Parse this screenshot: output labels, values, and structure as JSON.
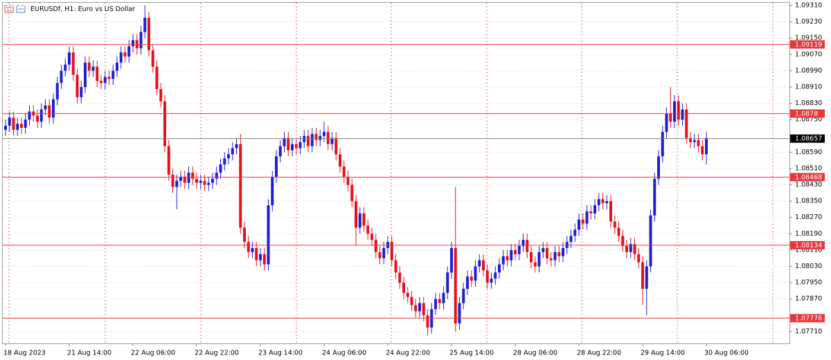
{
  "chart_data": {
    "type": "candlestick",
    "title": "EURUSDf, H1:  Euro vs US Dollar",
    "up_color": "#1f1fd0",
    "down_color": "#e3121c",
    "level_color": "#e8373c",
    "current_price_color": "#000000",
    "ylim": [
      1.07652,
      1.09327
    ],
    "yticks": [
      {
        "value": 1.0931,
        "label": "1.09310"
      },
      {
        "value": 1.0923,
        "label": "1.09230"
      },
      {
        "value": 1.0915,
        "label": "1.09150"
      },
      {
        "value": 1.0907,
        "label": "1.09070"
      },
      {
        "value": 1.0899,
        "label": "1.08990"
      },
      {
        "value": 1.0891,
        "label": "1.08910"
      },
      {
        "value": 1.0883,
        "label": "1.08830"
      },
      {
        "value": 1.0875,
        "label": "1.08750"
      },
      {
        "value": 1.0859,
        "label": "1.08590"
      },
      {
        "value": 1.0851,
        "label": "1.08510"
      },
      {
        "value": 1.0843,
        "label": "1.08430"
      },
      {
        "value": 1.0835,
        "label": "1.08350"
      },
      {
        "value": 1.0827,
        "label": "1.08270"
      },
      {
        "value": 1.0819,
        "label": "1.08190"
      },
      {
        "value": 1.0811,
        "label": "1.08110"
      },
      {
        "value": 1.0803,
        "label": "1.08030"
      },
      {
        "value": 1.0795,
        "label": "1.07950"
      },
      {
        "value": 1.0787,
        "label": "1.07870"
      },
      {
        "value": 1.0771,
        "label": "1.07710"
      }
    ],
    "grid": true,
    "levels": [
      1.09119,
      1.0878,
      1.08468,
      1.08134,
      1.07776
    ],
    "current_price": 1.08657,
    "categories": [
      "18 Aug 2023",
      null,
      null,
      null,
      null,
      null,
      null,
      null,
      null,
      null,
      null,
      null,
      null,
      null,
      null,
      null,
      "21 Aug 14:00",
      null,
      null,
      null,
      null,
      null,
      null,
      null,
      null,
      null,
      null,
      null,
      null,
      null,
      null,
      null,
      "22 Aug 06:00",
      null,
      null,
      null,
      null,
      null,
      null,
      null,
      null,
      null,
      null,
      null,
      null,
      null,
      null,
      null,
      "22 Aug 22:00",
      null,
      null,
      null,
      null,
      null,
      null,
      null,
      null,
      null,
      null,
      null,
      null,
      null,
      null,
      null,
      "23 Aug 14:00",
      null,
      null,
      null,
      null,
      null,
      null,
      null,
      null,
      null,
      null,
      null,
      null,
      null,
      null,
      null,
      "24 Aug 06:00",
      null,
      null,
      null,
      null,
      null,
      null,
      null,
      null,
      null,
      null,
      null,
      null,
      null,
      null,
      null,
      "24 Aug 22:00",
      null,
      null,
      null,
      null,
      null,
      null,
      null,
      null,
      null,
      null,
      null,
      null,
      null,
      null,
      null,
      "25 Aug 14:00",
      null,
      null,
      null,
      null,
      null,
      null,
      null,
      null,
      null,
      null,
      null,
      null,
      null,
      null,
      null,
      "28 Aug 06:00",
      null,
      null,
      null,
      null,
      null,
      null,
      null,
      null,
      null,
      null,
      null,
      null,
      null,
      null,
      null,
      "28 Aug 22:00",
      null,
      null,
      null,
      null,
      null,
      null,
      null,
      null,
      null,
      null,
      null,
      null,
      null,
      null,
      null,
      "29 Aug 14:00",
      null,
      null,
      null,
      null,
      null,
      null,
      null,
      null,
      null,
      null,
      null,
      null,
      null,
      null,
      null,
      "30 Aug 06:00"
    ],
    "open": [
      1.087,
      1.0872,
      1.0876,
      1.087,
      1.0873,
      1.0871,
      1.0875,
      1.0879,
      1.0877,
      1.0874,
      1.088,
      1.0882,
      1.0876,
      1.0885,
      1.0893,
      1.0899,
      1.0902,
      1.0908,
      1.0897,
      1.0886,
      1.0891,
      1.0903,
      1.0899,
      1.0901,
      1.0894,
      1.0893,
      1.0896,
      1.0895,
      1.0899,
      1.0903,
      1.0908,
      1.0906,
      1.0911,
      1.0914,
      1.091,
      1.0918,
      1.0925,
      1.0909,
      1.0901,
      1.089,
      1.0884,
      1.0862,
      1.0848,
      1.0842,
      1.0845,
      1.0847,
      1.0844,
      1.0849,
      1.0846,
      1.0844,
      1.0845,
      1.0843,
      1.0844,
      1.0846,
      1.0849,
      1.0853,
      1.0856,
      1.0858,
      1.0861,
      1.0863,
      1.0822,
      1.0815,
      1.081,
      1.0812,
      1.0806,
      1.0809,
      1.0804,
      1.0833,
      1.0847,
      1.0857,
      1.0862,
      1.0866,
      1.086,
      1.0863,
      1.0861,
      1.0864,
      1.0867,
      1.0862,
      1.0868,
      1.0865,
      1.0867,
      1.0869,
      1.0863,
      1.0866,
      1.0858,
      1.0852,
      1.0847,
      1.0843,
      1.0835,
      1.0822,
      1.0829,
      1.0823,
      1.0819,
      1.0816,
      1.081,
      1.0807,
      1.0812,
      1.0815,
      1.0806,
      1.08,
      1.0795,
      1.079,
      1.0788,
      1.0784,
      1.0781,
      1.0785,
      1.0779,
      1.0773,
      1.0782,
      1.0787,
      1.0785,
      1.079,
      1.08,
      1.0812,
      1.0775,
      1.0785,
      1.0792,
      1.0798,
      1.0796,
      1.0803,
      1.0806,
      1.0801,
      1.0795,
      1.0797,
      1.08,
      1.0804,
      1.0808,
      1.0806,
      1.0811,
      1.0809,
      1.0813,
      1.0816,
      1.081,
      1.0805,
      1.0803,
      1.081,
      1.0812,
      1.0807,
      1.0806,
      1.081,
      1.0808,
      1.0812,
      1.0815,
      1.0818,
      1.0821,
      1.0826,
      1.0824,
      1.083,
      1.0829,
      1.0833,
      1.0836,
      1.0834,
      1.0835,
      1.0825,
      1.0822,
      1.0818,
      1.0813,
      1.081,
      1.0814,
      1.0809,
      1.0805,
      1.0792,
      1.0803,
      1.0828,
      1.0846,
      1.0857,
      1.0869,
      1.0878,
      1.0874,
      1.0884,
      1.0875,
      1.088,
      1.0866,
      1.0864,
      1.0865,
      1.0862,
      1.0858
    ],
    "high": [
      1.0875,
      1.0879,
      1.0879,
      1.0876,
      1.0876,
      1.0878,
      1.0882,
      1.0882,
      1.088,
      1.0883,
      1.0885,
      1.0885,
      1.0888,
      1.0896,
      1.0902,
      1.0905,
      1.0911,
      1.0911,
      1.09,
      1.0894,
      1.0906,
      1.0906,
      1.0904,
      1.0904,
      1.0897,
      1.0899,
      1.0899,
      1.0902,
      1.0906,
      1.0911,
      1.0911,
      1.0914,
      1.0917,
      1.0917,
      1.0921,
      1.0931,
      1.0928,
      1.0912,
      1.0904,
      1.0893,
      1.0887,
      1.0865,
      1.0851,
      1.0848,
      1.085,
      1.085,
      1.0852,
      1.0852,
      1.0849,
      1.0848,
      1.0848,
      1.0847,
      1.0849,
      1.0852,
      1.0856,
      1.0859,
      1.0861,
      1.0864,
      1.0866,
      1.0868,
      1.0825,
      1.0818,
      1.0815,
      1.0815,
      1.0812,
      1.0812,
      1.0836,
      1.085,
      1.086,
      1.0865,
      1.0869,
      1.0869,
      1.0866,
      1.0866,
      1.0867,
      1.087,
      1.087,
      1.0871,
      1.0871,
      1.087,
      1.0874,
      1.0872,
      1.0869,
      1.0869,
      1.0861,
      1.0855,
      1.085,
      1.0846,
      1.0838,
      1.0832,
      1.0832,
      1.0826,
      1.0822,
      1.0819,
      1.0813,
      1.0815,
      1.0818,
      1.0818,
      1.0809,
      1.0803,
      1.0798,
      1.0793,
      1.0791,
      1.0787,
      1.0788,
      1.0788,
      1.0782,
      1.0785,
      1.079,
      1.079,
      1.0793,
      1.0803,
      1.0815,
      1.0842,
      1.0788,
      1.0795,
      1.0801,
      1.0801,
      1.0806,
      1.0809,
      1.0809,
      1.0804,
      1.08,
      1.0803,
      1.0807,
      1.0811,
      1.0811,
      1.0814,
      1.0814,
      1.0816,
      1.0819,
      1.0819,
      1.0813,
      1.0808,
      1.0813,
      1.0815,
      1.0815,
      1.081,
      1.0813,
      1.0813,
      1.0815,
      1.0818,
      1.0821,
      1.0824,
      1.0829,
      1.0829,
      1.0833,
      1.0833,
      1.0836,
      1.0839,
      1.0839,
      1.0838,
      1.0838,
      1.0828,
      1.0825,
      1.0821,
      1.0816,
      1.0817,
      1.0817,
      1.0812,
      1.0808,
      1.0806,
      1.0831,
      1.0849,
      1.086,
      1.0872,
      1.0881,
      1.0891,
      1.0887,
      1.0887,
      1.0883,
      1.0883,
      1.0869,
      1.0868,
      1.0868,
      1.0865,
      1.0869
    ],
    "low": [
      1.0867,
      1.0869,
      1.0867,
      1.0867,
      1.0868,
      1.0868,
      1.0872,
      1.0874,
      1.0871,
      1.0871,
      1.0877,
      1.0873,
      1.0873,
      1.0882,
      1.089,
      1.0896,
      1.0899,
      1.0894,
      1.0883,
      1.0883,
      1.0888,
      1.0896,
      1.0896,
      1.0891,
      1.089,
      1.089,
      1.0892,
      1.0892,
      1.0896,
      1.09,
      1.0903,
      1.0903,
      1.0908,
      1.0907,
      1.0907,
      1.0915,
      1.0906,
      1.0898,
      1.0887,
      1.0881,
      1.0859,
      1.0845,
      1.0839,
      1.0831,
      1.0842,
      1.0841,
      1.0841,
      1.0843,
      1.0841,
      1.0841,
      1.084,
      1.084,
      1.0841,
      1.0843,
      1.0846,
      1.085,
      1.0853,
      1.0855,
      1.0858,
      1.0819,
      1.0812,
      1.0807,
      1.0807,
      1.0803,
      1.0803,
      1.0801,
      1.0801,
      1.083,
      1.0844,
      1.0854,
      1.0859,
      1.0857,
      1.0857,
      1.0858,
      1.0858,
      1.0861,
      1.0859,
      1.0859,
      1.0862,
      1.0862,
      1.0864,
      1.086,
      1.086,
      1.0855,
      1.0849,
      1.0844,
      1.084,
      1.0832,
      1.0813,
      1.0819,
      1.082,
      1.0816,
      1.0813,
      1.0807,
      1.0804,
      1.0804,
      1.0809,
      1.0803,
      1.0797,
      1.0792,
      1.0787,
      1.0785,
      1.0781,
      1.0778,
      1.0778,
      1.0776,
      1.0769,
      1.077,
      1.0779,
      1.0782,
      1.0782,
      1.0787,
      1.0797,
      1.0771,
      1.0772,
      1.0782,
      1.0789,
      1.0793,
      1.0793,
      1.08,
      1.0798,
      1.0792,
      1.0792,
      1.0794,
      1.0797,
      1.0801,
      1.0803,
      1.0803,
      1.0806,
      1.0806,
      1.081,
      1.0807,
      1.0802,
      1.08,
      1.08,
      1.0807,
      1.0804,
      1.0803,
      1.0803,
      1.0805,
      1.0805,
      1.0809,
      1.0812,
      1.0815,
      1.0818,
      1.0821,
      1.0821,
      1.0826,
      1.0826,
      1.083,
      1.0831,
      1.0831,
      1.0822,
      1.0819,
      1.0815,
      1.081,
      1.0807,
      1.0807,
      1.0806,
      1.0802,
      1.0784,
      1.0779,
      1.08,
      1.0825,
      1.0843,
      1.0854,
      1.0866,
      1.0871,
      1.0871,
      1.0872,
      1.0872,
      1.0863,
      1.0861,
      1.0861,
      1.0859,
      1.0855,
      1.0853
    ],
    "close": [
      1.0872,
      1.0876,
      1.087,
      1.0873,
      1.0871,
      1.0875,
      1.0879,
      1.0877,
      1.0874,
      1.088,
      1.0882,
      1.0876,
      1.0885,
      1.0893,
      1.0899,
      1.0902,
      1.0908,
      1.0897,
      1.0886,
      1.0891,
      1.0903,
      1.0899,
      1.0901,
      1.0894,
      1.0893,
      1.0896,
      1.0895,
      1.0899,
      1.0903,
      1.0908,
      1.0906,
      1.0911,
      1.0914,
      1.091,
      1.0918,
      1.0925,
      1.0909,
      1.0901,
      1.089,
      1.0884,
      1.0862,
      1.0848,
      1.0842,
      1.0845,
      1.0847,
      1.0844,
      1.0849,
      1.0846,
      1.0844,
      1.0845,
      1.0843,
      1.0844,
      1.0846,
      1.0849,
      1.0853,
      1.0856,
      1.0858,
      1.0861,
      1.0863,
      1.0822,
      1.0815,
      1.081,
      1.0812,
      1.0806,
      1.0809,
      1.0804,
      1.0833,
      1.0847,
      1.0857,
      1.0862,
      1.0866,
      1.086,
      1.0863,
      1.0861,
      1.0864,
      1.0867,
      1.0862,
      1.0868,
      1.0865,
      1.0867,
      1.0869,
      1.0863,
      1.0866,
      1.0858,
      1.0852,
      1.0847,
      1.0843,
      1.0835,
      1.0822,
      1.0829,
      1.0823,
      1.0819,
      1.0816,
      1.081,
      1.0807,
      1.0812,
      1.0815,
      1.0806,
      1.08,
      1.0795,
      1.079,
      1.0788,
      1.0784,
      1.0781,
      1.0785,
      1.0779,
      1.0773,
      1.0782,
      1.0787,
      1.0785,
      1.079,
      1.08,
      1.0812,
      1.0775,
      1.0785,
      1.0792,
      1.0798,
      1.0796,
      1.0803,
      1.0806,
      1.0801,
      1.0795,
      1.0797,
      1.08,
      1.0804,
      1.0808,
      1.0806,
      1.0811,
      1.0809,
      1.0813,
      1.0816,
      1.081,
      1.0805,
      1.0803,
      1.081,
      1.0812,
      1.0807,
      1.0806,
      1.081,
      1.0808,
      1.0812,
      1.0815,
      1.0818,
      1.0821,
      1.0826,
      1.0824,
      1.083,
      1.0829,
      1.0833,
      1.0836,
      1.0834,
      1.0835,
      1.0825,
      1.0822,
      1.0818,
      1.0813,
      1.081,
      1.0814,
      1.0809,
      1.0805,
      1.0792,
      1.0803,
      1.0828,
      1.0846,
      1.0857,
      1.0869,
      1.0878,
      1.0874,
      1.0884,
      1.0875,
      1.088,
      1.0866,
      1.0864,
      1.0865,
      1.0862,
      1.0858,
      1.0866
    ]
  }
}
